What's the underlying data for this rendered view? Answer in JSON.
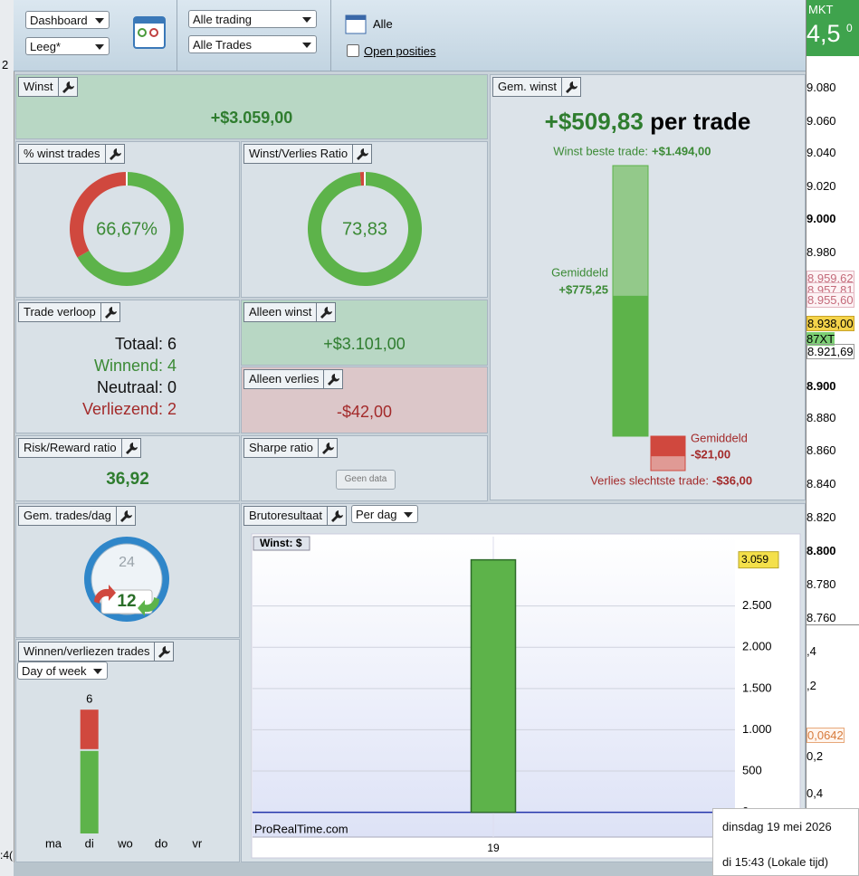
{
  "toolbar": {
    "view": "Dashboard",
    "layout": "Leeg*",
    "trading": "Alle trading",
    "trades": "Alle Trades",
    "period": "Alle",
    "open_positions": "Open posities"
  },
  "panels": {
    "winst": {
      "title": "Winst",
      "value": "+$3.059,00"
    },
    "gem_winst": {
      "title": "Gem. winst",
      "value": "+$509,83",
      "unit": "per trade",
      "best_label": "Winst beste trade:",
      "best": {
        "value": 1494,
        "label": "+$1.494,00"
      },
      "avg_win_label": "Gemiddeld",
      "avg_win": {
        "value": 775.25,
        "label": "+$775,25"
      },
      "avg_loss_label": "Gemiddeld",
      "avg_loss": {
        "value": -21,
        "label": "-$21,00"
      },
      "worst_label": "Verlies slechtste trade:",
      "worst": {
        "value": -36,
        "label": "-$36,00"
      }
    },
    "pct_winst": {
      "title": "% winst trades",
      "value": 66.67,
      "label": "66,67%"
    },
    "ratio": {
      "title": "Winst/Verlies Ratio",
      "value": 73.83,
      "label": "73,83"
    },
    "verloop": {
      "title": "Trade verloop",
      "rows": [
        [
          "Totaal:",
          "6"
        ],
        [
          "Winnend:",
          "4"
        ],
        [
          "Neutraal:",
          "0"
        ],
        [
          "Verliezend:",
          "2"
        ]
      ]
    },
    "alleen_winst": {
      "title": "Alleen winst",
      "value": "+$3.101,00"
    },
    "alleen_verlies": {
      "title": "Alleen verlies",
      "value": "-$42,00"
    },
    "risk_reward": {
      "title": "Risk/Reward ratio",
      "value": "36,92"
    },
    "sharpe": {
      "title": "Sharpe ratio",
      "button": "Geen data"
    },
    "trades_dag": {
      "title": "Gem. trades/dag",
      "clock_top": "24",
      "clock_value": "12"
    },
    "winnen_verliezen": {
      "title": "Winnen/verliezen trades",
      "period": "Day of week",
      "categories": [
        "ma",
        "di",
        "wo",
        "do",
        "vr"
      ],
      "wins": [
        0,
        4,
        0,
        0,
        0
      ],
      "losses": [
        0,
        2,
        0,
        0,
        0
      ],
      "total_labels": [
        null,
        "6",
        null,
        null,
        null
      ],
      "win_color": "#5db34a",
      "loss_color": "#d0483e"
    },
    "bruto": {
      "title": "Brutoresultaat",
      "period": "Per dag",
      "legend": "Winst: $",
      "categories": [
        "19"
      ],
      "values": [
        3059
      ],
      "last_label": "3.059",
      "color": "#5db34a",
      "ylim": [
        -300,
        3340
      ],
      "yticks": [
        0,
        500,
        {
          "value": 1000,
          "label": "1.000"
        },
        {
          "value": 1500,
          "label": "1.500"
        },
        {
          "value": 2000,
          "label": "2.000"
        },
        {
          "value": 2500,
          "label": "2.500"
        }
      ],
      "watermark": "ProRealTime.com"
    }
  },
  "price_axis": {
    "header": "MKT",
    "price": "4,5",
    "superscript": "0",
    "labels": [
      "9.080",
      "9.060",
      "9.040",
      "9.020",
      "9.000",
      "8.980",
      "8.959,62",
      "8.957,81",
      "8.955,60",
      "8.938,00",
      "87XT",
      "8.921,69",
      "8.900",
      "8.880",
      "8.860",
      "8.840",
      "8.820",
      "8.800",
      "8.780",
      "8.760",
      ",4",
      ",2",
      "0,0642",
      "0,2",
      "0,4"
    ]
  },
  "left_strip": {
    "top": "2",
    "bottom": ":4("
  },
  "tooltip": {
    "date": "dinsdag 19 mei 2026",
    "time": "di 15:43 (Lokale tijd)"
  }
}
